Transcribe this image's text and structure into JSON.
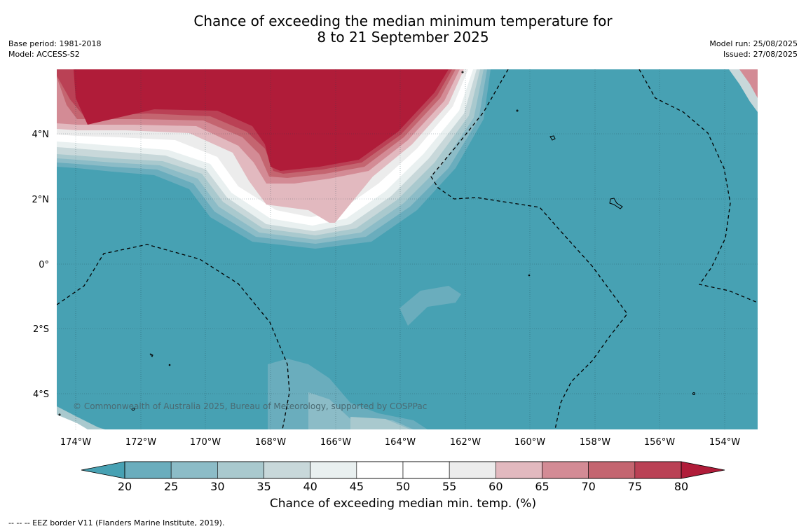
{
  "title_line1": "Chance of exceeding the median minimum temperature for",
  "title_line2": "8 to 21 September 2025",
  "base_period": "Base period: 1981-2018",
  "model": "Model: ACCESS-S2",
  "model_run": "Model run: 25/08/2025",
  "issued": "Issued: 27/08/2025",
  "copyright": "© Commonwealth of Australia 2025, Bureau of Meteorology, supported by COSPPac",
  "lon_labels": [
    "174°W",
    "172°W",
    "170°W",
    "168°W",
    "166°W",
    "164°W",
    "162°W",
    "160°W",
    "158°W",
    "156°W",
    "154°W"
  ],
  "lat_labels": [
    "4°N",
    "2°N",
    "0°",
    "2°S",
    "4°S"
  ],
  "colorbar": {
    "title": "Chance of exceeding median min. temp. (%)",
    "ticks": [
      "20",
      "25",
      "30",
      "35",
      "40",
      "45",
      "50",
      "55",
      "60",
      "65",
      "70",
      "75",
      "80"
    ],
    "low_extend_color": "#47a1b3",
    "high_extend_color": "#b01c39",
    "colors": [
      "#6aadbd",
      "#8cbcc7",
      "#a9c9ce",
      "#c8d8da",
      "#e9f0f0",
      "#ffffff",
      "#ffffff",
      "#ececec",
      "#e2b9bf",
      "#d38b95",
      "#c46570",
      "#ba4155"
    ]
  },
  "footnote": "--  --  -- EEZ border V11 (Flanders Marine Institute, 2019).",
  "colors": {
    "ocean_base": "#47a1b3",
    "warm_core": "#b01c39"
  }
}
